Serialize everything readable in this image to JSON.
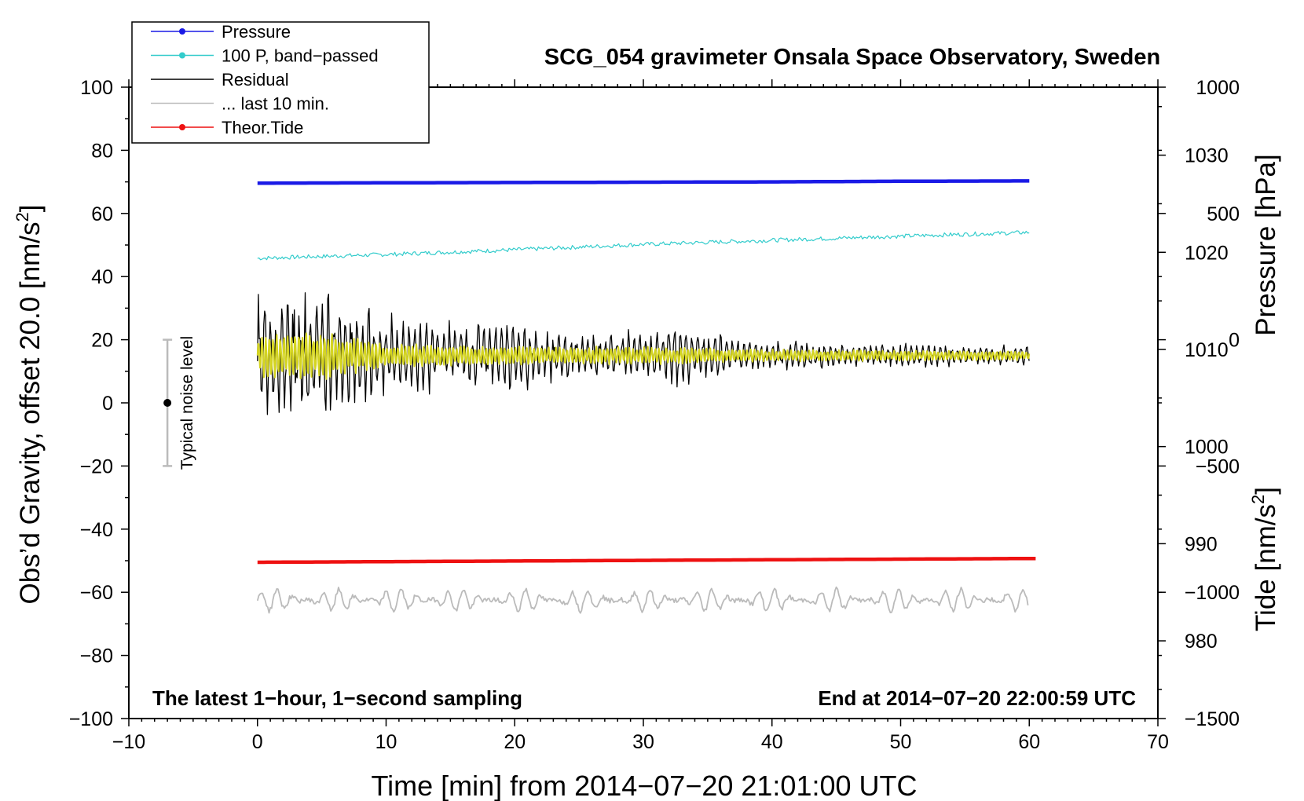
{
  "chart_data": {
    "type": "line",
    "title": "SCG_054 gravimeter Onsala Space Observatory, Sweden",
    "xlabel": "Time [min] from 2014−07−20 21:01:00 UTC",
    "ylabel": "Obs’d Gravity, offset 20.0 [nm/s",
    "ylabel_sup": "2",
    "ylabel_end": "]",
    "y2_label_pressure": "Pressure [hPa]",
    "y2_label_tide": "Tide [nm/s",
    "y2_label_tide_sup": "2",
    "y2_label_tide_end": "]",
    "xlim": [
      -10,
      70
    ],
    "ylim": [
      -100,
      100
    ],
    "x_ticks": [
      -10,
      0,
      10,
      20,
      30,
      40,
      50,
      60,
      70
    ],
    "x_tick_labels": [
      "−10",
      "0",
      "10",
      "20",
      "30",
      "40",
      "50",
      "60",
      "70"
    ],
    "y_ticks": [
      -100,
      -80,
      -60,
      -40,
      -20,
      0,
      20,
      40,
      60,
      80,
      100
    ],
    "y_tick_labels": [
      "−100",
      "−80",
      "−60",
      "−40",
      "−20",
      "0",
      "20",
      "40",
      "60",
      "80",
      "100"
    ],
    "pressure_axis": {
      "range": [
        972,
        1037
      ],
      "ticks": [
        980,
        990,
        1000,
        1010,
        1020,
        1030
      ],
      "tick_labels": [
        "980",
        "990",
        "1000",
        "1010",
        "1020",
        "1030"
      ]
    },
    "tide_axis": {
      "range": [
        -1500,
        1000
      ],
      "ticks": [
        -1500,
        -1000,
        -500,
        0,
        500,
        1000
      ],
      "tick_labels": [
        "−1500",
        "−1000",
        "−500",
        "0",
        "500",
        "1000"
      ]
    },
    "legend": [
      {
        "label": "Pressure",
        "color": "#1a1ae6",
        "marker": true
      },
      {
        "label": "100 P, band−passed",
        "color": "#33cccc",
        "marker": true
      },
      {
        "label": "Residual",
        "color": "#000000",
        "marker": false
      },
      {
        "label": "... last 10 min.",
        "color": "#bbbbbb",
        "marker": false
      },
      {
        "label": "Theor.Tide",
        "color": "#ee1111",
        "marker": true
      }
    ],
    "annotations": {
      "bottom_left": "The latest 1−hour, 1−second sampling",
      "bottom_right": "End at 2014−07−20 22:00:59 UTC",
      "noise_label": "Typical noise level"
    },
    "noise_bar": {
      "x": -7,
      "center": 0,
      "low": -20,
      "high": 20
    },
    "series": [
      {
        "name": "Pressure",
        "color": "#1a1ae6",
        "x": [
          0,
          10,
          20,
          30,
          40,
          50,
          60
        ],
        "values": [
          69.6,
          69.7,
          69.8,
          69.9,
          70.0,
          70.2,
          70.3
        ]
      },
      {
        "name": "100 P, band-passed",
        "color": "#33cccc",
        "x": [
          0,
          10,
          20,
          30,
          40,
          50,
          60
        ],
        "values": [
          45.8,
          47.0,
          48.5,
          50.2,
          51.5,
          52.8,
          54.0
        ]
      },
      {
        "name": "Residual",
        "color": "#000000",
        "x_start": 0,
        "x_end": 60,
        "baseline": 15,
        "amplitude_profile": [
          [
            0,
            19
          ],
          [
            5,
            21
          ],
          [
            10,
            12
          ],
          [
            15,
            10
          ],
          [
            20,
            11
          ],
          [
            25,
            7
          ],
          [
            30,
            8
          ],
          [
            33,
            10
          ],
          [
            37,
            5
          ],
          [
            45,
            4
          ],
          [
            55,
            3
          ],
          [
            60,
            3
          ]
        ]
      },
      {
        "name": "Residual smoothed",
        "color": "#d4d421",
        "x_start": 0,
        "x_end": 60,
        "baseline": 15,
        "amplitude_profile": [
          [
            0,
            7
          ],
          [
            5,
            8
          ],
          [
            10,
            4
          ],
          [
            20,
            3
          ],
          [
            30,
            3
          ],
          [
            40,
            2
          ],
          [
            60,
            1.5
          ]
        ]
      },
      {
        "name": "... last 10 min.",
        "color": "#bbbbbb",
        "x_start": 0,
        "x_end": 60,
        "baseline": -62.5,
        "amplitude": 3.5
      },
      {
        "name": "Theor.Tide",
        "color": "#ee1111",
        "x": [
          0,
          10,
          20,
          30,
          40,
          50,
          60.5
        ],
        "values": [
          -50.5,
          -50.3,
          -50.1,
          -49.9,
          -49.7,
          -49.5,
          -49.3
        ]
      }
    ]
  }
}
